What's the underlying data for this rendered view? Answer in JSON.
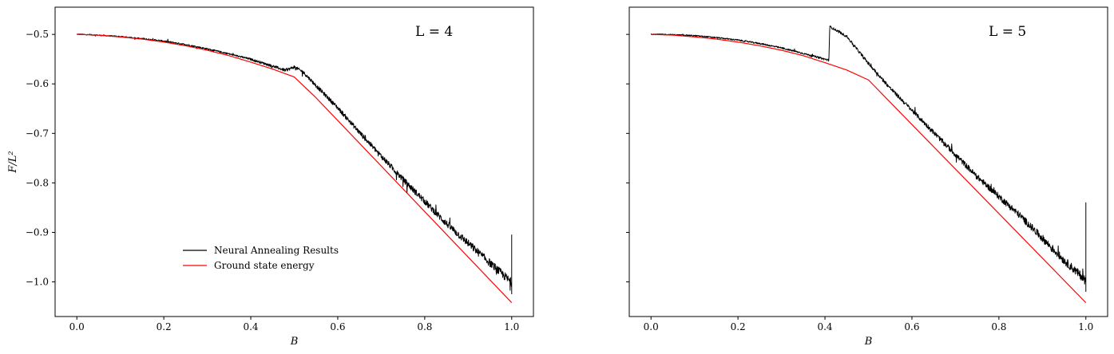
{
  "chart_data": [
    {
      "type": "line",
      "title": "L = 4",
      "xlabel": "B",
      "ylabel": "F/L²",
      "xlim": [
        -0.05,
        1.05
      ],
      "ylim": [
        -1.07,
        -0.445
      ],
      "xticks": [
        0.0,
        0.2,
        0.4,
        0.6,
        0.8,
        1.0
      ],
      "xtick_labels": [
        "0.0",
        "0.2",
        "0.4",
        "0.6",
        "0.8",
        "1.0"
      ],
      "yticks": [
        -0.5,
        -0.6,
        -0.7,
        -0.8,
        -0.9,
        -1.0
      ],
      "ytick_labels": [
        "−0.5",
        "−0.6",
        "−0.7",
        "−0.8",
        "−0.9",
        "−1.0"
      ],
      "legend_position": "lower-left",
      "grid": false,
      "series": [
        {
          "name": "Neural Annealing Results",
          "color": "#000000",
          "noisy": true,
          "x": [
            0.0,
            0.05,
            0.1,
            0.15,
            0.2,
            0.25,
            0.3,
            0.35,
            0.4,
            0.45,
            0.48,
            0.5,
            0.52,
            0.55,
            0.6,
            0.65,
            0.7,
            0.75,
            0.8,
            0.85,
            0.9,
            0.95,
            1.0
          ],
          "y": [
            -0.5,
            -0.502,
            -0.505,
            -0.509,
            -0.514,
            -0.521,
            -0.53,
            -0.54,
            -0.551,
            -0.565,
            -0.574,
            -0.567,
            -0.577,
            -0.605,
            -0.65,
            -0.7,
            -0.748,
            -0.795,
            -0.84,
            -0.885,
            -0.925,
            -0.965,
            -1.005
          ]
        },
        {
          "name": "Ground state energy",
          "color": "#ff0000",
          "noisy": false,
          "x": [
            0.0,
            0.05,
            0.1,
            0.15,
            0.2,
            0.25,
            0.3,
            0.35,
            0.4,
            0.45,
            0.5,
            0.55,
            1.0
          ],
          "y": [
            -0.5,
            -0.5015,
            -0.505,
            -0.5095,
            -0.5155,
            -0.523,
            -0.532,
            -0.543,
            -0.556,
            -0.57,
            -0.586,
            -0.628,
            -1.042
          ]
        }
      ]
    },
    {
      "type": "line",
      "title": "L = 5",
      "xlabel": "B",
      "ylabel": "",
      "xlim": [
        -0.05,
        1.05
      ],
      "ylim": [
        -1.07,
        -0.445
      ],
      "xticks": [
        0.0,
        0.2,
        0.4,
        0.6,
        0.8,
        1.0
      ],
      "xtick_labels": [
        "0.0",
        "0.2",
        "0.4",
        "0.6",
        "0.8",
        "1.0"
      ],
      "yticks": [
        -0.5,
        -0.6,
        -0.7,
        -0.8,
        -0.9,
        -1.0
      ],
      "ytick_labels": [],
      "grid": false,
      "series": [
        {
          "name": "",
          "color": "#000000",
          "noisy": true,
          "x": [
            0.0,
            0.05,
            0.1,
            0.15,
            0.2,
            0.25,
            0.3,
            0.35,
            0.4,
            0.409,
            0.411,
            0.45,
            0.5,
            0.55,
            0.6,
            0.65,
            0.7,
            0.75,
            0.8,
            0.85,
            0.9,
            0.95,
            1.0
          ],
          "y": [
            -0.5,
            -0.501,
            -0.503,
            -0.507,
            -0.512,
            -0.519,
            -0.528,
            -0.539,
            -0.551,
            -0.553,
            -0.485,
            -0.505,
            -0.56,
            -0.61,
            -0.655,
            -0.7,
            -0.745,
            -0.79,
            -0.83,
            -0.87,
            -0.915,
            -0.96,
            -1.0
          ]
        },
        {
          "name": "",
          "color": "#ff0000",
          "noisy": false,
          "x": [
            0.0,
            0.05,
            0.1,
            0.15,
            0.2,
            0.25,
            0.3,
            0.35,
            0.4,
            0.45,
            0.5,
            1.0
          ],
          "y": [
            -0.5,
            -0.5015,
            -0.505,
            -0.5095,
            -0.5155,
            -0.523,
            -0.532,
            -0.543,
            -0.557,
            -0.572,
            -0.592,
            -1.042
          ]
        }
      ]
    }
  ]
}
